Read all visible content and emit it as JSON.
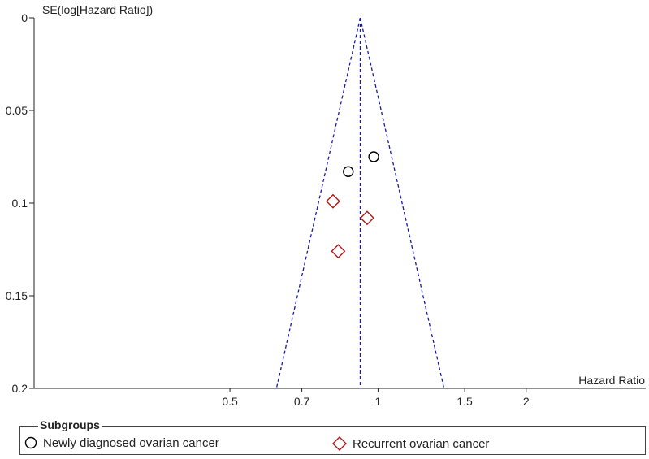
{
  "chart_data": {
    "type": "scatter",
    "subtype": "funnel-plot",
    "title": "",
    "xlabel": "Hazard Ratio",
    "ylabel": "SE(log[Hazard Ratio])",
    "x_scale": "log",
    "y_reversed": true,
    "ylim": [
      0,
      0.2
    ],
    "xlim": [
      0.2,
      3.5
    ],
    "x_ticks": [
      0.5,
      0.7,
      1,
      1.5,
      2
    ],
    "x_tick_labels": [
      "0.5",
      "0.7",
      "1",
      "1.5",
      "2"
    ],
    "y_ticks": [
      0,
      0.05,
      0.1,
      0.15,
      0.2
    ],
    "y_tick_labels": [
      "0",
      "0.05",
      "0.1",
      "0.15",
      "0.2"
    ],
    "pooled_estimate": 0.92,
    "funnel": {
      "color": "#1a1aa8",
      "line_style": "dashed",
      "apex_se": 0,
      "base_se": 0.2
    },
    "series": [
      {
        "name": "Newly diagnosed ovarian cancer",
        "marker": "circle",
        "color": "#000000",
        "points": [
          {
            "x": 0.98,
            "y": 0.075
          },
          {
            "x": 0.87,
            "y": 0.083
          }
        ]
      },
      {
        "name": "Recurrent ovarian cancer",
        "marker": "diamond",
        "color": "#b01818",
        "points": [
          {
            "x": 0.81,
            "y": 0.099
          },
          {
            "x": 0.95,
            "y": 0.108
          },
          {
            "x": 0.83,
            "y": 0.126
          }
        ]
      }
    ],
    "legend": {
      "title": "Subgroups",
      "position": "bottom"
    }
  }
}
